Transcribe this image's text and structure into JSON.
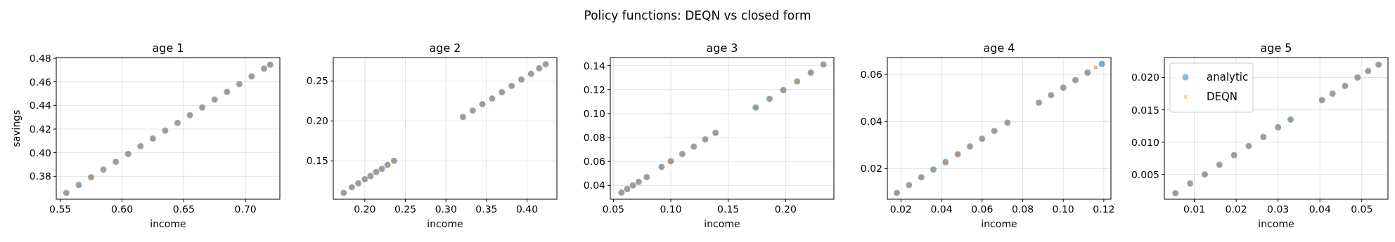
{
  "chart_data": [
    {
      "type": "scatter",
      "title": "age 1",
      "xlabel": "income",
      "ylabel": "savings",
      "annotations": [
        "Policy functions: DEQN vs closed form"
      ],
      "xlim": [
        0.5468,
        0.7278
      ],
      "ylim": [
        0.3606,
        0.4806
      ],
      "xticks": [
        {
          "value": 0.55,
          "label": "0.55"
        },
        {
          "value": 0.6,
          "label": "0.60"
        },
        {
          "value": 0.65,
          "label": "0.65"
        },
        {
          "value": 0.7,
          "label": "0.70"
        }
      ],
      "yticks": [
        {
          "value": 0.38,
          "label": "0.38"
        },
        {
          "value": 0.4,
          "label": "0.40"
        },
        {
          "value": 0.42,
          "label": "0.42"
        },
        {
          "value": 0.44,
          "label": "0.44"
        },
        {
          "value": 0.46,
          "label": "0.46"
        },
        {
          "value": 0.48,
          "label": "0.48"
        }
      ],
      "grid": true,
      "legend": false,
      "series": [
        {
          "color": "#1f77b4",
          "marker": "circle",
          "x": [
            0.555,
            0.565,
            0.575,
            0.585,
            0.595,
            0.605,
            0.615,
            0.625,
            0.635,
            0.645,
            0.655,
            0.665,
            0.675,
            0.685,
            0.695,
            0.705,
            0.715,
            0.72
          ],
          "values": [
            0.366,
            0.3726,
            0.3792,
            0.3857,
            0.3923,
            0.3989,
            0.4055,
            0.412,
            0.4186,
            0.4252,
            0.4318,
            0.4383,
            0.4449,
            0.4515,
            0.4581,
            0.4646,
            0.4712,
            0.4745
          ]
        },
        {
          "color": "#ff7f0e",
          "marker": "cross",
          "x": [
            0.555,
            0.565,
            0.575,
            0.585,
            0.595,
            0.605,
            0.615,
            0.625,
            0.635,
            0.645,
            0.655,
            0.665,
            0.675,
            0.685,
            0.695,
            0.705,
            0.715,
            0.72
          ],
          "values": [
            0.366,
            0.3726,
            0.3792,
            0.3857,
            0.3923,
            0.3989,
            0.4055,
            0.412,
            0.4186,
            0.4252,
            0.4318,
            0.4383,
            0.4449,
            0.4515,
            0.4581,
            0.4646,
            0.4712,
            0.4745
          ]
        }
      ]
    },
    {
      "type": "scatter",
      "title": "age 2",
      "xlabel": "income",
      "xlim": [
        0.1611,
        0.4368
      ],
      "ylim": [
        0.102,
        0.2795
      ],
      "xticks": [
        {
          "value": 0.2,
          "label": "0.20"
        },
        {
          "value": 0.25,
          "label": "0.25"
        },
        {
          "value": 0.3,
          "label": "0.30"
        },
        {
          "value": 0.35,
          "label": "0.35"
        },
        {
          "value": 0.4,
          "label": "0.40"
        }
      ],
      "yticks": [
        {
          "value": 0.15,
          "label": "0.15"
        },
        {
          "value": 0.2,
          "label": "0.20"
        },
        {
          "value": 0.25,
          "label": "0.25"
        }
      ],
      "grid": true,
      "legend": false,
      "series": [
        {
          "color": "#1f77b4",
          "marker": "circle",
          "x": [
            0.174,
            0.184,
            0.192,
            0.2,
            0.207,
            0.214,
            0.221,
            0.228,
            0.236,
            0.321,
            0.333,
            0.345,
            0.357,
            0.369,
            0.381,
            0.393,
            0.405,
            0.415,
            0.423
          ],
          "values": [
            0.11,
            0.117,
            0.122,
            0.127,
            0.131,
            0.136,
            0.14,
            0.145,
            0.15,
            0.205,
            0.213,
            0.221,
            0.228,
            0.236,
            0.244,
            0.252,
            0.259,
            0.266,
            0.271
          ]
        },
        {
          "color": "#ff7f0e",
          "marker": "cross",
          "x": [
            0.174,
            0.184,
            0.192,
            0.2,
            0.207,
            0.214,
            0.221,
            0.228,
            0.236,
            0.321,
            0.333,
            0.345,
            0.357,
            0.369,
            0.381,
            0.393,
            0.405,
            0.415,
            0.423
          ],
          "values": [
            0.11,
            0.117,
            0.122,
            0.127,
            0.131,
            0.136,
            0.14,
            0.145,
            0.15,
            0.205,
            0.213,
            0.221,
            0.228,
            0.236,
            0.244,
            0.252,
            0.259,
            0.266,
            0.271
          ]
        }
      ]
    },
    {
      "type": "scatter",
      "title": "age 3",
      "xlabel": "income",
      "xlim": [
        0.0473,
        0.2421
      ],
      "ylim": [
        0.0285,
        0.1468
      ],
      "xticks": [
        {
          "value": 0.05,
          "label": "0.05"
        },
        {
          "value": 0.1,
          "label": "0.10"
        },
        {
          "value": 0.15,
          "label": "0.15"
        },
        {
          "value": 0.2,
          "label": "0.20"
        }
      ],
      "yticks": [
        {
          "value": 0.04,
          "label": "0.04"
        },
        {
          "value": 0.06,
          "label": "0.06"
        },
        {
          "value": 0.08,
          "label": "0.08"
        },
        {
          "value": 0.1,
          "label": "0.10"
        },
        {
          "value": 0.12,
          "label": "0.12"
        },
        {
          "value": 0.14,
          "label": "0.14"
        }
      ],
      "grid": true,
      "legend": false,
      "series": [
        {
          "color": "#1f77b4",
          "marker": "circle",
          "x": [
            0.057,
            0.062,
            0.067,
            0.072,
            0.079,
            0.092,
            0.1,
            0.11,
            0.12,
            0.13,
            0.139,
            0.174,
            0.186,
            0.198,
            0.21,
            0.222,
            0.233
          ],
          "values": [
            0.034,
            0.037,
            0.04,
            0.043,
            0.047,
            0.0555,
            0.0603,
            0.0663,
            0.0724,
            0.0784,
            0.084,
            0.105,
            0.1123,
            0.1196,
            0.1269,
            0.1342,
            0.141
          ]
        },
        {
          "color": "#ff7f0e",
          "marker": "cross",
          "x": [
            0.057,
            0.062,
            0.067,
            0.072,
            0.079,
            0.092,
            0.1,
            0.11,
            0.12,
            0.13,
            0.139,
            0.174,
            0.186,
            0.198,
            0.21,
            0.222,
            0.233
          ],
          "values": [
            0.034,
            0.037,
            0.04,
            0.043,
            0.047,
            0.0555,
            0.0603,
            0.0663,
            0.0724,
            0.0784,
            0.084,
            0.105,
            0.1123,
            0.1196,
            0.1269,
            0.1342,
            0.141
          ]
        }
      ]
    },
    {
      "type": "scatter",
      "title": "age 4",
      "xlabel": "income",
      "xlim": [
        0.0133,
        0.1235
      ],
      "ylim": [
        0.007,
        0.0672
      ],
      "xticks": [
        {
          "value": 0.02,
          "label": "0.02"
        },
        {
          "value": 0.04,
          "label": "0.04"
        },
        {
          "value": 0.06,
          "label": "0.06"
        },
        {
          "value": 0.08,
          "label": "0.08"
        },
        {
          "value": 0.1,
          "label": "0.10"
        },
        {
          "value": 0.12,
          "label": "0.12"
        }
      ],
      "yticks": [
        {
          "value": 0.02,
          "label": "0.02"
        },
        {
          "value": 0.04,
          "label": "0.04"
        },
        {
          "value": 0.06,
          "label": "0.06"
        }
      ],
      "grid": true,
      "legend": false,
      "series": [
        {
          "color": "#1f77b4",
          "marker": "circle",
          "x": [
            0.018,
            0.024,
            0.03,
            0.036,
            0.042,
            0.048,
            0.054,
            0.06,
            0.066,
            0.0725,
            0.088,
            0.094,
            0.1,
            0.106,
            0.112,
            0.119
          ],
          "values": [
            0.0097,
            0.013,
            0.0163,
            0.0196,
            0.0228,
            0.0261,
            0.0294,
            0.0327,
            0.036,
            0.0395,
            0.048,
            0.0512,
            0.0544,
            0.0576,
            0.0608,
            0.0645
          ]
        },
        {
          "color": "#ff7f0e",
          "marker": "cross",
          "x": [
            0.018,
            0.024,
            0.03,
            0.036,
            0.042,
            0.048,
            0.054,
            0.06,
            0.066,
            0.0725,
            0.088,
            0.094,
            0.1,
            0.106,
            0.112,
            0.116
          ],
          "values": [
            0.0097,
            0.013,
            0.0163,
            0.0196,
            0.0228,
            0.0261,
            0.0294,
            0.0327,
            0.036,
            0.0395,
            0.048,
            0.0512,
            0.0544,
            0.0576,
            0.0608,
            0.063
          ]
        }
      ]
    },
    {
      "type": "scatter",
      "title": "age 5",
      "xlabel": "income",
      "xlim": [
        0.00286,
        0.05625
      ],
      "ylim": [
        0.00117,
        0.0231
      ],
      "xticks": [
        {
          "value": 0.01,
          "label": "0.01"
        },
        {
          "value": 0.02,
          "label": "0.02"
        },
        {
          "value": 0.03,
          "label": "0.03"
        },
        {
          "value": 0.04,
          "label": "0.04"
        },
        {
          "value": 0.05,
          "label": "0.05"
        }
      ],
      "yticks": [
        {
          "value": 0.005,
          "label": "0.005"
        },
        {
          "value": 0.01,
          "label": "0.010"
        },
        {
          "value": 0.015,
          "label": "0.015"
        },
        {
          "value": 0.02,
          "label": "0.020"
        }
      ],
      "grid": true,
      "legend": "top left",
      "series": [
        {
          "name": "analytic",
          "color": "#1f77b4",
          "marker": "circle",
          "x": [
            0.0055,
            0.009,
            0.0125,
            0.016,
            0.0195,
            0.023,
            0.0265,
            0.03,
            0.033,
            0.0405,
            0.043,
            0.046,
            0.049,
            0.0515,
            0.054
          ],
          "values": [
            0.0021,
            0.0036,
            0.005,
            0.0065,
            0.008,
            0.0094,
            0.0108,
            0.0123,
            0.0135,
            0.0165,
            0.0175,
            0.0187,
            0.02,
            0.021,
            0.022
          ]
        },
        {
          "name": "DEQN",
          "color": "#ff7f0e",
          "marker": "cross",
          "x": [
            0.0055,
            0.009,
            0.0125,
            0.016,
            0.0195,
            0.023,
            0.0265,
            0.03,
            0.033,
            0.0405,
            0.043,
            0.046,
            0.049,
            0.0515,
            0.054
          ],
          "values": [
            0.0021,
            0.0036,
            0.005,
            0.0065,
            0.008,
            0.0094,
            0.0108,
            0.0123,
            0.0135,
            0.0165,
            0.0175,
            0.0187,
            0.02,
            0.021,
            0.022
          ]
        }
      ]
    }
  ]
}
